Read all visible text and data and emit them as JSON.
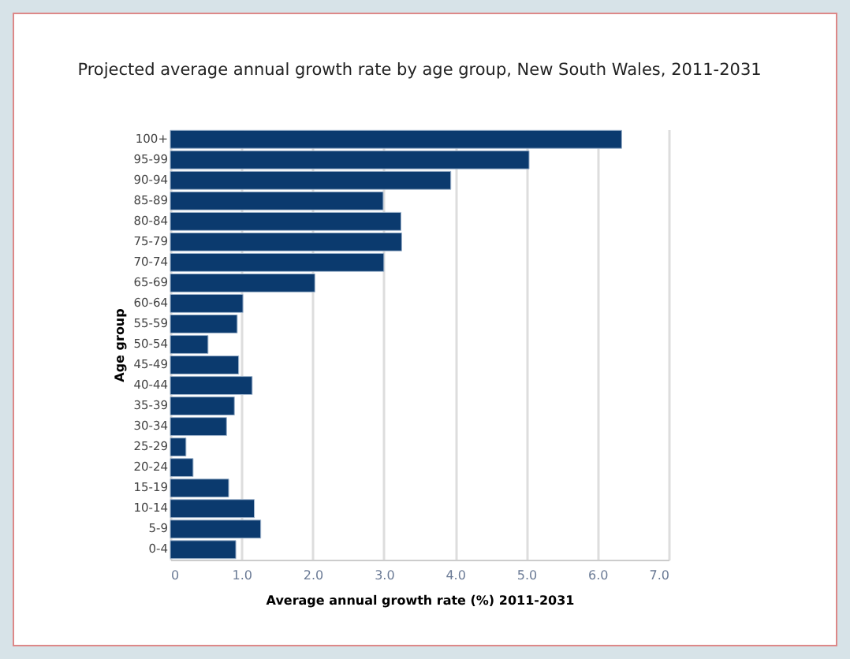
{
  "chart_data": {
    "type": "bar",
    "orientation": "horizontal",
    "title": "Projected average annual growth rate by age group, New South Wales, 2011-2031",
    "xlabel": "Average annual growth rate (%) 2011-2031",
    "ylabel": "Age group",
    "categories": [
      "100+",
      "95-99",
      "90-94",
      "85-89",
      "80-84",
      "75-79",
      "70-74",
      "65-69",
      "60-64",
      "55-59",
      "50-54",
      "45-49",
      "40-44",
      "35-39",
      "30-34",
      "25-29",
      "20-24",
      "15-19",
      "10-14",
      "5-9",
      "0-4"
    ],
    "values": [
      6.34,
      5.04,
      3.94,
      2.99,
      3.24,
      3.25,
      3.0,
      2.03,
      1.02,
      0.94,
      0.53,
      0.96,
      1.15,
      0.9,
      0.79,
      0.22,
      0.32,
      0.82,
      1.18,
      1.27,
      0.92
    ],
    "color": "#0b3a6e",
    "xlim": [
      0,
      7
    ],
    "xticks": [
      {
        "value": 0,
        "label": "0"
      },
      {
        "value": 1,
        "label": "1.0"
      },
      {
        "value": 2,
        "label": "2.0"
      },
      {
        "value": 3,
        "label": "3.0"
      },
      {
        "value": 4,
        "label": "4.0"
      },
      {
        "value": 5,
        "label": "5.0"
      },
      {
        "value": 6,
        "label": "6.0"
      },
      {
        "value": 7,
        "label": "7.0"
      }
    ],
    "grid": "x"
  }
}
